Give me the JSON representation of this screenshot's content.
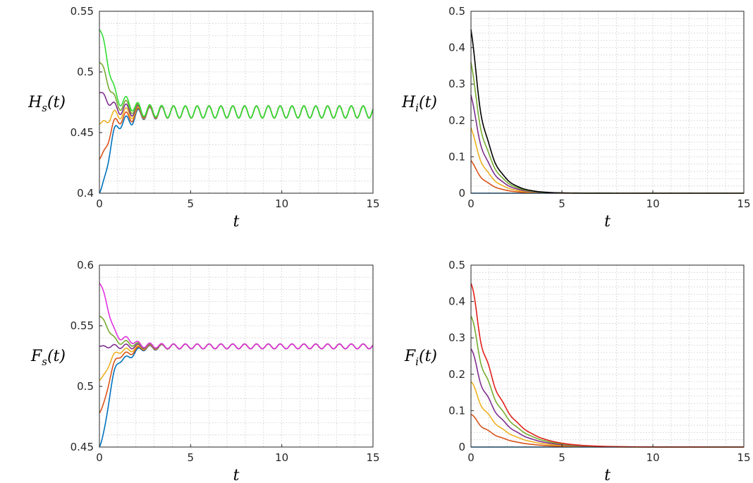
{
  "colors": {
    "blue": "#0072BD",
    "orange": "#D95319",
    "yellow": "#EDB120",
    "purple": "#7E2F8E",
    "green": "#77AC30",
    "brightgreen": "#33DD33",
    "black": "#000000",
    "red": "#E0201B",
    "magenta": "#E033E0"
  },
  "chart_data": [
    {
      "type": "line",
      "id": "Hs",
      "title": "",
      "ylabel": {
        "main": "H",
        "sub": "s",
        "suffix": "(t)"
      },
      "xlabel": "t",
      "xlim": [
        0,
        15
      ],
      "ylim": [
        0.4,
        0.55
      ],
      "xticks": [
        0,
        5,
        10,
        15
      ],
      "xtick_labels": [
        "0",
        "5",
        "10",
        "15"
      ],
      "yticks": [
        0.4,
        0.45,
        0.5,
        0.55
      ],
      "ytick_labels": [
        "0.4",
        "0.45",
        "0.5",
        "0.55"
      ],
      "grid": true,
      "oscillation": {
        "center": 0.467,
        "amplitude": 0.005,
        "period": 0.65
      },
      "series": [
        {
          "color_key": "blue",
          "initial": 0.4
        },
        {
          "color_key": "orange",
          "initial": 0.428
        },
        {
          "color_key": "yellow",
          "initial": 0.457
        },
        {
          "color_key": "purple",
          "initial": 0.483
        },
        {
          "color_key": "green",
          "initial": 0.508
        },
        {
          "color_key": "brightgreen",
          "initial": 0.535
        }
      ]
    },
    {
      "type": "line",
      "id": "Hi",
      "title": "",
      "ylabel": {
        "main": "H",
        "sub": "i",
        "suffix": "(t)"
      },
      "xlabel": "t",
      "xlim": [
        0,
        15
      ],
      "ylim": [
        0,
        0.5
      ],
      "xticks": [
        0,
        5,
        10,
        15
      ],
      "xtick_labels": [
        "0",
        "5",
        "10",
        "15"
      ],
      "yticks": [
        0,
        0.1,
        0.2,
        0.3,
        0.4,
        0.5
      ],
      "ytick_labels": [
        "0",
        "0.1",
        "0.2",
        "0.3",
        "0.4",
        "0.5"
      ],
      "grid": true,
      "decay_rate": 1.25,
      "series": [
        {
          "color_key": "blue",
          "initial": 0.0
        },
        {
          "color_key": "orange",
          "initial": 0.09
        },
        {
          "color_key": "yellow",
          "initial": 0.18
        },
        {
          "color_key": "purple",
          "initial": 0.27
        },
        {
          "color_key": "green",
          "initial": 0.36
        },
        {
          "color_key": "black",
          "initial": 0.45
        }
      ]
    },
    {
      "type": "line",
      "id": "Fs",
      "title": "",
      "ylabel": {
        "main": "F",
        "sub": "s",
        "suffix": "(t)"
      },
      "xlabel": "t",
      "xlim": [
        0,
        15
      ],
      "ylim": [
        0.45,
        0.6
      ],
      "xticks": [
        0,
        5,
        10,
        15
      ],
      "xtick_labels": [
        "0",
        "5",
        "10",
        "15"
      ],
      "yticks": [
        0.45,
        0.5,
        0.55,
        0.6
      ],
      "ytick_labels": [
        "0.45",
        "0.5",
        "0.55",
        "0.6"
      ],
      "grid": true,
      "oscillation": {
        "center": 0.533,
        "amplitude": 0.002,
        "period": 0.65
      },
      "series": [
        {
          "color_key": "blue",
          "initial": 0.45
        },
        {
          "color_key": "orange",
          "initial": 0.478
        },
        {
          "color_key": "yellow",
          "initial": 0.505
        },
        {
          "color_key": "purple",
          "initial": 0.533
        },
        {
          "color_key": "green",
          "initial": 0.558
        },
        {
          "color_key": "magenta",
          "initial": 0.585
        }
      ]
    },
    {
      "type": "line",
      "id": "Fi",
      "title": "",
      "ylabel": {
        "main": "F",
        "sub": "i",
        "suffix": "(t)"
      },
      "xlabel": "t",
      "xlim": [
        0,
        15
      ],
      "ylim": [
        0,
        0.5
      ],
      "xticks": [
        0,
        5,
        10,
        15
      ],
      "xtick_labels": [
        "0",
        "5",
        "10",
        "15"
      ],
      "yticks": [
        0,
        0.1,
        0.2,
        0.3,
        0.4,
        0.5
      ],
      "ytick_labels": [
        "0",
        "0.1",
        "0.2",
        "0.3",
        "0.4",
        "0.5"
      ],
      "grid": true,
      "decay_rate": 0.75,
      "series": [
        {
          "color_key": "blue",
          "initial": 0.0
        },
        {
          "color_key": "orange",
          "initial": 0.09
        },
        {
          "color_key": "yellow",
          "initial": 0.18
        },
        {
          "color_key": "purple",
          "initial": 0.27
        },
        {
          "color_key": "green",
          "initial": 0.36
        },
        {
          "color_key": "red",
          "initial": 0.45
        }
      ]
    }
  ]
}
